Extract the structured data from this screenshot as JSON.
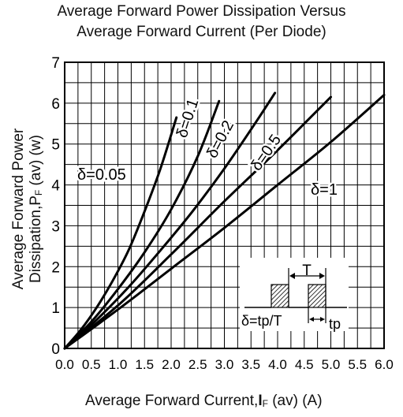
{
  "title_line1": "Average Forward Power Dissipation Versus",
  "title_line2": "Average Forward Current (Per Diode)",
  "ylabel": {
    "line1": "Average Forward Power",
    "line2_prefix": "Dissipation,P",
    "line2_sub": "F",
    "line2_suffix": " (av) (w)"
  },
  "xlabel": {
    "prefix": "Average Forward Current,",
    "bold": "I",
    "sub": "F",
    "suffix": " (av) (A)"
  },
  "inset": {
    "period_label": "T",
    "formula": "δ=tp/T",
    "pulse_label": "tp"
  },
  "chart_data": {
    "type": "line",
    "xlim": [
      0,
      6.0
    ],
    "ylim": [
      0,
      7
    ],
    "x_ticks": [
      "0.0",
      "0.5",
      "1.0",
      "1.5",
      "2.0",
      "2.5",
      "3.0",
      "3.5",
      "4.0",
      "4.5",
      "5.0",
      "5.5",
      "6.0"
    ],
    "y_ticks": [
      "0",
      "1",
      "2",
      "3",
      "4",
      "5",
      "6",
      "7"
    ],
    "grid": true,
    "series": [
      {
        "name": "δ=0.05",
        "x": [
          0,
          0.3,
          0.6,
          0.9,
          1.2,
          1.5,
          1.8,
          2.1
        ],
        "y": [
          0,
          0.45,
          1.0,
          1.65,
          2.4,
          3.35,
          4.4,
          5.65
        ]
      },
      {
        "name": "δ=0.1",
        "x": [
          0,
          0.5,
          1.0,
          1.5,
          2.0,
          2.5,
          2.9
        ],
        "y": [
          0,
          0.65,
          1.45,
          2.35,
          3.4,
          4.7,
          6.05
        ]
      },
      {
        "name": "δ=0.2",
        "x": [
          0,
          0.6,
          1.2,
          1.8,
          2.4,
          3.0,
          3.6,
          3.95
        ],
        "y": [
          0,
          0.7,
          1.5,
          2.4,
          3.35,
          4.4,
          5.55,
          6.25
        ]
      },
      {
        "name": "δ=0.5",
        "x": [
          0,
          1.0,
          2.0,
          3.0,
          4.0,
          5.0
        ],
        "y": [
          0,
          1.05,
          2.3,
          3.6,
          4.85,
          6.15
        ]
      },
      {
        "name": "δ=1",
        "x": [
          0,
          1.0,
          2.0,
          3.0,
          4.0,
          5.0,
          6.0
        ],
        "y": [
          0,
          0.95,
          1.95,
          2.95,
          4.0,
          5.05,
          6.2
        ]
      }
    ]
  }
}
